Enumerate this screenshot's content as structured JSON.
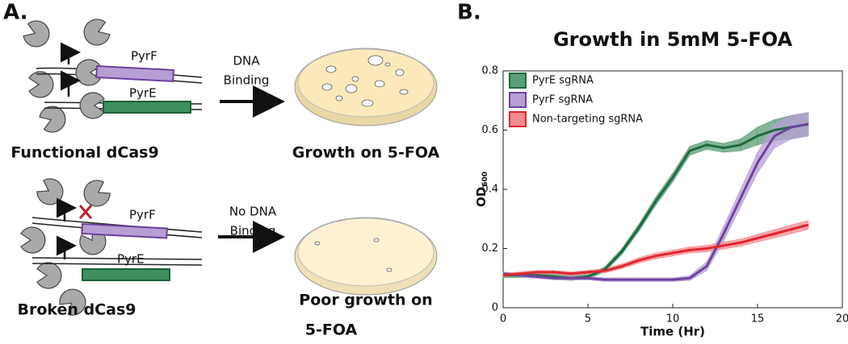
{
  "panel_a": {
    "label": "A.",
    "top": {
      "genes": [
        "PyrF",
        "PyrE"
      ],
      "arrow_label": [
        "DNA",
        "Binding"
      ],
      "caption": "Functional dCas9",
      "result": "Growth on 5-FOA"
    },
    "bottom": {
      "genes": [
        "PyrF",
        "PyrE"
      ],
      "arrow_label": [
        "No DNA",
        "Binding"
      ],
      "caption": "Broken dCas9",
      "result": [
        "Poor growth on",
        "5-FOA"
      ]
    }
  },
  "chart_data": {
    "type": "line",
    "panel_label": "B.",
    "title": "Growth in 5mM 5-FOA",
    "x_label": "Time (Hr)",
    "y_label": "OD",
    "y_label_subscript": "600",
    "x": [
      0,
      1,
      2,
      3,
      4,
      5,
      6,
      7,
      8,
      9,
      10,
      11,
      12,
      13,
      14,
      15,
      16,
      17,
      18
    ],
    "series": [
      {
        "name": "PyrE sgRNA",
        "color": "#1d6b3f",
        "band_color": "#5a9e77",
        "values": [
          0.11,
          0.11,
          0.11,
          0.105,
          0.1,
          0.105,
          0.13,
          0.19,
          0.27,
          0.36,
          0.44,
          0.53,
          0.55,
          0.54,
          0.55,
          0.58,
          0.6,
          0.61,
          0.62
        ],
        "errors": [
          0.008,
          0.008,
          0.008,
          0.008,
          0.008,
          0.008,
          0.008,
          0.01,
          0.012,
          0.014,
          0.015,
          0.015,
          0.015,
          0.015,
          0.02,
          0.03,
          0.035,
          0.04,
          0.04
        ]
      },
      {
        "name": "PyrF sgRNA",
        "color": "#6f42a0",
        "band_color": "#b79fd6",
        "values": [
          0.115,
          0.11,
          0.105,
          0.1,
          0.1,
          0.1,
          0.095,
          0.095,
          0.095,
          0.095,
          0.095,
          0.1,
          0.14,
          0.25,
          0.37,
          0.49,
          0.58,
          0.61,
          0.62
        ],
        "errors": [
          0.006,
          0.006,
          0.006,
          0.006,
          0.006,
          0.006,
          0.006,
          0.006,
          0.006,
          0.006,
          0.006,
          0.008,
          0.015,
          0.025,
          0.03,
          0.035,
          0.04,
          0.04,
          0.04
        ]
      },
      {
        "name": "Non-targeting sgRNA",
        "color": "#e0262f",
        "band_color": "#f28a8f",
        "values": [
          0.11,
          0.115,
          0.12,
          0.12,
          0.115,
          0.12,
          0.125,
          0.14,
          0.16,
          0.175,
          0.185,
          0.195,
          0.2,
          0.21,
          0.22,
          0.235,
          0.25,
          0.265,
          0.28
        ],
        "errors": [
          0.006,
          0.006,
          0.006,
          0.006,
          0.006,
          0.006,
          0.007,
          0.008,
          0.009,
          0.01,
          0.01,
          0.01,
          0.011,
          0.012,
          0.012,
          0.013,
          0.014,
          0.015,
          0.015
        ]
      }
    ],
    "xlim": [
      0,
      20
    ],
    "xticks": [
      0,
      5,
      10,
      15,
      20
    ],
    "ylim": [
      0,
      0.8
    ],
    "yticks": [
      0,
      0.2,
      0.4,
      0.6,
      0.8
    ],
    "legend": "upper left"
  }
}
